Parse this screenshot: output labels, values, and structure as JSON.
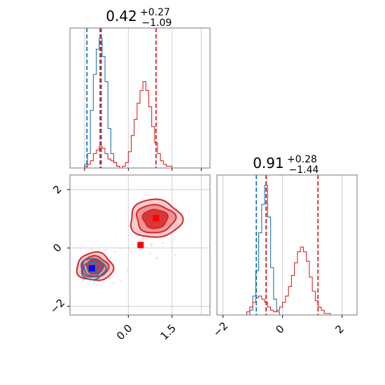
{
  "chart_data": [
    {
      "panel": "marginal-1",
      "type": "histogram",
      "title": {
        "value": "0.42",
        "upper": "+0.27",
        "lower": "−1.09"
      },
      "xlim": [
        -2.0,
        2.8
      ],
      "x_ticks": [
        -1.5,
        0.0,
        1.5,
        2.5
      ],
      "series": [
        {
          "color": "#1f77b4",
          "edges": [
            -1.6,
            -1.5,
            -1.4,
            -1.3,
            -1.2,
            -1.1,
            -1.0,
            -0.9,
            -0.8,
            -0.7,
            -0.6,
            -0.5,
            -0.4,
            -0.3,
            -0.2
          ],
          "values": [
            0.0,
            0.02,
            0.08,
            0.32,
            0.52,
            0.66,
            0.72,
            0.62,
            0.48,
            0.22,
            0.08,
            0.03,
            0.01,
            0.0
          ],
          "quantile_lines": [
            -1.42,
            -0.93,
            -0.97
          ]
        },
        {
          "color": "#d62728",
          "edges": [
            -1.6,
            -1.5,
            -1.4,
            -1.3,
            -1.2,
            -1.1,
            -1.0,
            -0.9,
            -0.8,
            -0.7,
            -0.6,
            -0.5,
            -0.4,
            -0.3,
            -0.2,
            -0.1,
            0.0,
            0.1,
            0.2,
            0.3,
            0.4,
            0.5,
            0.6,
            0.7,
            0.8,
            0.9,
            1.0,
            1.1,
            1.2,
            1.3,
            1.4,
            1.5,
            1.6,
            1.7,
            1.8,
            1.9,
            2.0
          ],
          "values": [
            0.0,
            0.01,
            0.02,
            0.04,
            0.08,
            0.1,
            0.12,
            0.11,
            0.08,
            0.05,
            0.04,
            0.03,
            0.01,
            0.0,
            0.01,
            0.03,
            0.09,
            0.18,
            0.27,
            0.36,
            0.43,
            0.48,
            0.43,
            0.34,
            0.23,
            0.14,
            0.08,
            0.04,
            0.02,
            0.01,
            0.01,
            0.0,
            0.0,
            0.0,
            0.0,
            0.0
          ],
          "quantile_lines": [
            -0.94,
            0.95
          ]
        }
      ]
    },
    {
      "panel": "joint",
      "type": "contour-scatter",
      "xlim": [
        -2.0,
        2.8
      ],
      "ylim": [
        -2.3,
        2.5
      ],
      "x_ticks": [
        0.0,
        1.5
      ],
      "x_tick_labels": [
        "0.0",
        "1.5"
      ],
      "y_ticks": [
        -2,
        0,
        2
      ],
      "y_tick_labels": [
        "−2",
        "0",
        "2"
      ],
      "extra_gridlines": {
        "x": [
          2.5
        ],
        "y": [
          -2.0
        ]
      },
      "blobs": [
        {
          "color": "#d62728",
          "center": [
            -1.15,
            -0.65
          ],
          "radii": [
            [
              0.62,
              0.48
            ],
            [
              0.45,
              0.36
            ],
            [
              0.28,
              0.24
            ]
          ]
        },
        {
          "color": "#d62728",
          "center": [
            0.92,
            1.0
          ],
          "radii": [
            [
              0.88,
              0.65
            ],
            [
              0.66,
              0.48
            ],
            [
              0.42,
              0.32
            ]
          ]
        },
        {
          "color": "#1f77b4",
          "center": [
            -1.22,
            -0.72
          ],
          "radii": [
            [
              0.42,
              0.36
            ],
            [
              0.3,
              0.24
            ],
            [
              0.16,
              0.14
            ]
          ]
        }
      ],
      "markers": [
        {
          "color": "#0000ff",
          "x": -1.25,
          "y": -0.7
        },
        {
          "color": "#ff0000",
          "x": 0.95,
          "y": 1.02
        },
        {
          "color": "#ff0000",
          "x": 0.42,
          "y": 0.1
        }
      ]
    },
    {
      "panel": "marginal-2",
      "type": "histogram",
      "title": {
        "value": "0.91",
        "upper": "+0.28",
        "lower": "−1.44"
      },
      "xlim": [
        -2.2,
        2.5
      ],
      "x_ticks": [
        -2,
        0,
        2
      ],
      "x_tick_labels": [
        "−2",
        "0",
        "2"
      ],
      "series": [
        {
          "color": "#1f77b4",
          "edges": [
            -1.2,
            -1.1,
            -1.0,
            -0.9,
            -0.8,
            -0.7,
            -0.6,
            -0.5,
            -0.4,
            -0.3,
            -0.2,
            -0.1
          ],
          "values": [
            0.0,
            0.03,
            0.12,
            0.28,
            0.52,
            0.7,
            0.82,
            0.62,
            0.3,
            0.1,
            0.02
          ],
          "quantile_lines": [
            -0.88,
            -0.55
          ]
        },
        {
          "color": "#d62728",
          "edges": [
            -1.3,
            -1.2,
            -1.1,
            -1.0,
            -0.9,
            -0.8,
            -0.7,
            -0.6,
            -0.5,
            -0.4,
            -0.3,
            -0.2,
            -0.1,
            0.0,
            0.1,
            0.2,
            0.3,
            0.4,
            0.5,
            0.6,
            0.7,
            0.8,
            0.9,
            1.0,
            1.1,
            1.2,
            1.3,
            1.4,
            1.5,
            1.6,
            1.7,
            1.8,
            1.9,
            2.0
          ],
          "values": [
            0.0,
            0.02,
            0.05,
            0.08,
            0.11,
            0.12,
            0.1,
            0.08,
            0.05,
            0.03,
            0.02,
            0.03,
            0.05,
            0.08,
            0.12,
            0.18,
            0.25,
            0.33,
            0.4,
            0.43,
            0.4,
            0.34,
            0.24,
            0.15,
            0.09,
            0.05,
            0.03,
            0.01,
            0.01,
            0.0,
            0.0,
            0.0,
            0.0
          ],
          "quantile_lines": [
            -0.55,
            1.19
          ]
        }
      ]
    }
  ]
}
